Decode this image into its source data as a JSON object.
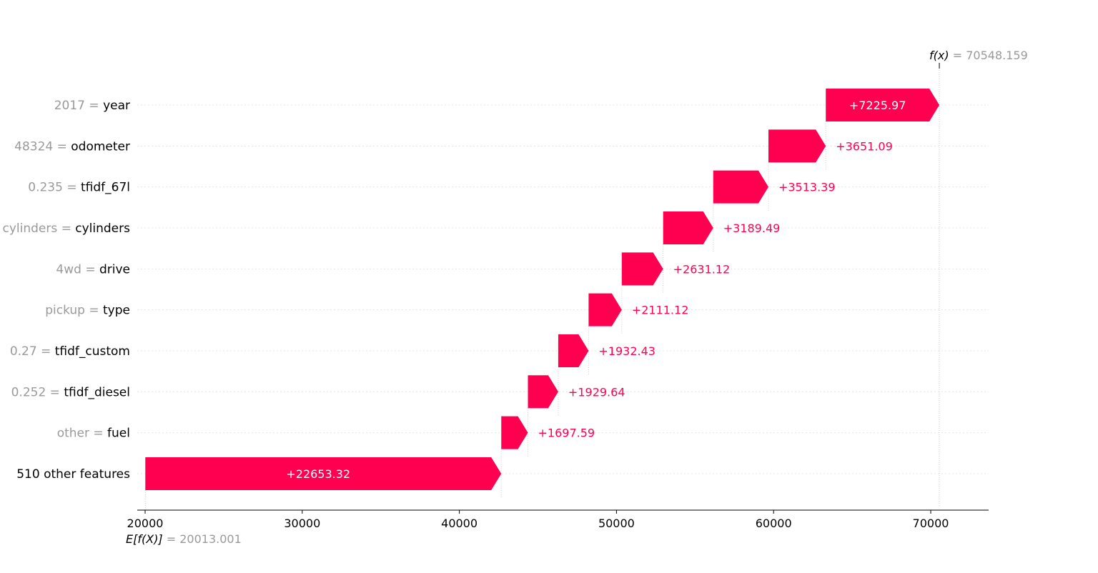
{
  "chart_data": {
    "type": "waterfall",
    "base_value": 20013.001,
    "output_value": 70548.159,
    "base_label": "E[f(X)]",
    "base_value_text": "= 20013.001",
    "output_label": "f(x)",
    "output_value_text": "= 70548.159",
    "features": [
      {
        "value_text": "2017 =",
        "name": "year",
        "contribution": 7225.97,
        "label": "+7225.97"
      },
      {
        "value_text": "48324 =",
        "name": "odometer",
        "contribution": 3651.09,
        "label": "+3651.09"
      },
      {
        "value_text": "0.235 =",
        "name": "tfidf_67l",
        "contribution": 3513.39,
        "label": "+3513.39"
      },
      {
        "value_text": "cylinders =",
        "name": "cylinders",
        "contribution": 3189.49,
        "label": "+3189.49"
      },
      {
        "value_text": "4wd =",
        "name": "drive",
        "contribution": 2631.12,
        "label": "+2631.12"
      },
      {
        "value_text": "pickup =",
        "name": "type",
        "contribution": 2111.12,
        "label": "+2111.12"
      },
      {
        "value_text": "0.27 =",
        "name": "tfidf_custom",
        "contribution": 1932.43,
        "label": "+1932.43"
      },
      {
        "value_text": "0.252 =",
        "name": "tfidf_diesel",
        "contribution": 1929.64,
        "label": "+1929.64"
      },
      {
        "value_text": "other =",
        "name": "fuel",
        "contribution": 1697.59,
        "label": "+1697.59"
      },
      {
        "value_text": "",
        "name": "510 other features",
        "contribution": 22653.32,
        "label": "+22653.32"
      }
    ],
    "xticks": [
      20000,
      30000,
      40000,
      50000,
      60000,
      70000
    ],
    "xlim": [
      19500,
      73500
    ],
    "colors": {
      "positive": "#ff0051",
      "muted_text": "#999999",
      "gridline": "#cccccc"
    }
  }
}
